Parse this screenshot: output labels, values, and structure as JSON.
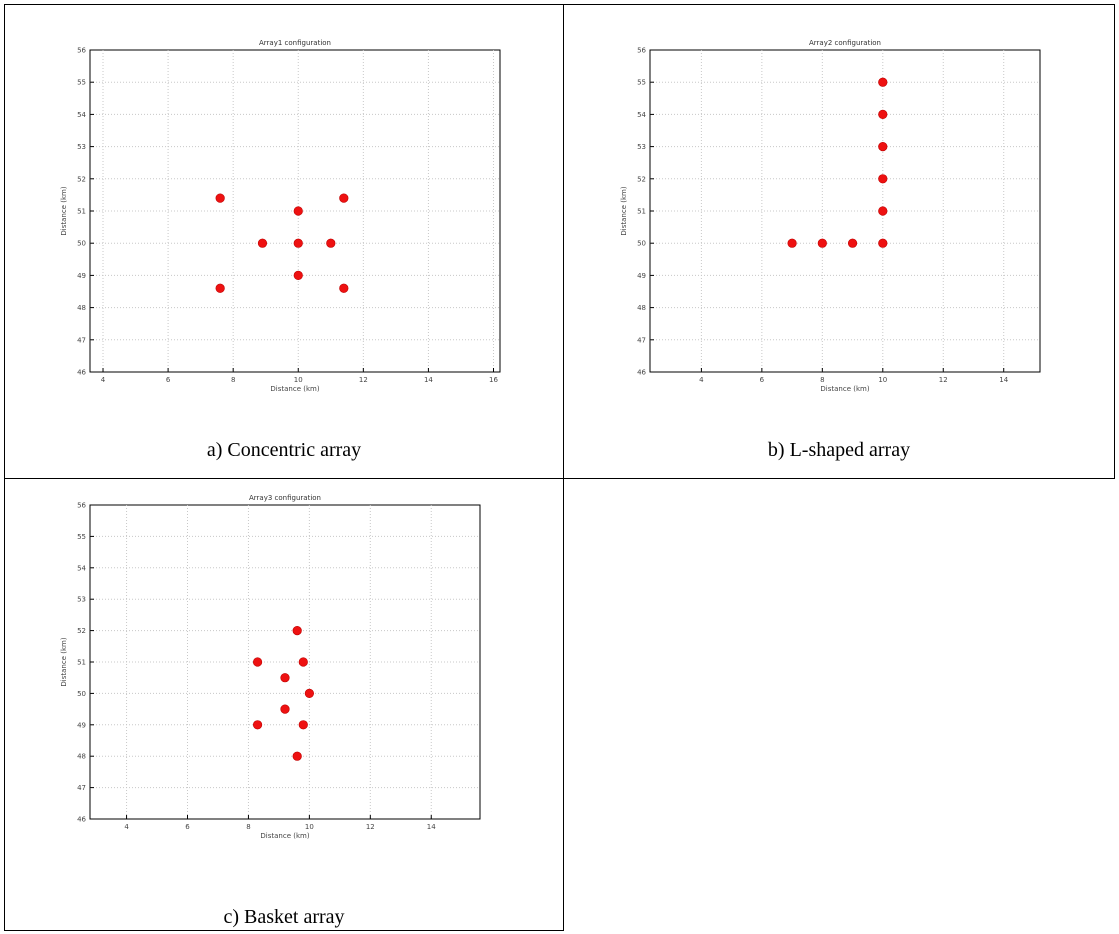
{
  "marker_color": "#ee1111",
  "panels": [
    {
      "caption": "a) Concentric array",
      "chart_data": {
        "type": "scatter",
        "title": "Array1 configuration",
        "xlabel": "Distance (km)",
        "ylabel": "Distance (km)",
        "xlim": [
          3.6,
          16.2
        ],
        "ylim": [
          46,
          56
        ],
        "xticks": [
          4,
          6,
          8,
          10,
          12,
          14,
          16
        ],
        "yticks": [
          46,
          47,
          48,
          49,
          50,
          51,
          52,
          53,
          54,
          55,
          56
        ],
        "grid": true,
        "points": [
          [
            7.6,
            51.4
          ],
          [
            11.4,
            51.4
          ],
          [
            10,
            51
          ],
          [
            8.9,
            50
          ],
          [
            10,
            50
          ],
          [
            11,
            50
          ],
          [
            10,
            49
          ],
          [
            7.6,
            48.6
          ],
          [
            11.4,
            48.6
          ]
        ]
      }
    },
    {
      "caption": "b) L-shaped array",
      "chart_data": {
        "type": "scatter",
        "title": "Array2 configuration",
        "xlabel": "Distance (km)",
        "ylabel": "Distance (km)",
        "xlim": [
          2.3,
          15.2
        ],
        "ylim": [
          46,
          56
        ],
        "xticks": [
          4,
          6,
          8,
          10,
          12,
          14
        ],
        "yticks": [
          46,
          47,
          48,
          49,
          50,
          51,
          52,
          53,
          54,
          55,
          56
        ],
        "grid": true,
        "points": [
          [
            7,
            50
          ],
          [
            8,
            50
          ],
          [
            9,
            50
          ],
          [
            10,
            50
          ],
          [
            10,
            51
          ],
          [
            10,
            52
          ],
          [
            10,
            53
          ],
          [
            10,
            54
          ],
          [
            10,
            55
          ]
        ]
      }
    },
    {
      "caption": "c) Basket array",
      "chart_data": {
        "type": "scatter",
        "title": "Array3 configuration",
        "xlabel": "Distance (km)",
        "ylabel": "Distance (km)",
        "xlim": [
          2.8,
          15.6
        ],
        "ylim": [
          46,
          56
        ],
        "xticks": [
          4,
          6,
          8,
          10,
          12,
          14
        ],
        "yticks": [
          46,
          47,
          48,
          49,
          50,
          51,
          52,
          53,
          54,
          55,
          56
        ],
        "grid": true,
        "points": [
          [
            9.6,
            52
          ],
          [
            8.3,
            51
          ],
          [
            9.8,
            51
          ],
          [
            9.2,
            50.5
          ],
          [
            10,
            50
          ],
          [
            9.2,
            49.5
          ],
          [
            8.3,
            49
          ],
          [
            9.8,
            49
          ],
          [
            9.6,
            48
          ]
        ]
      }
    }
  ]
}
